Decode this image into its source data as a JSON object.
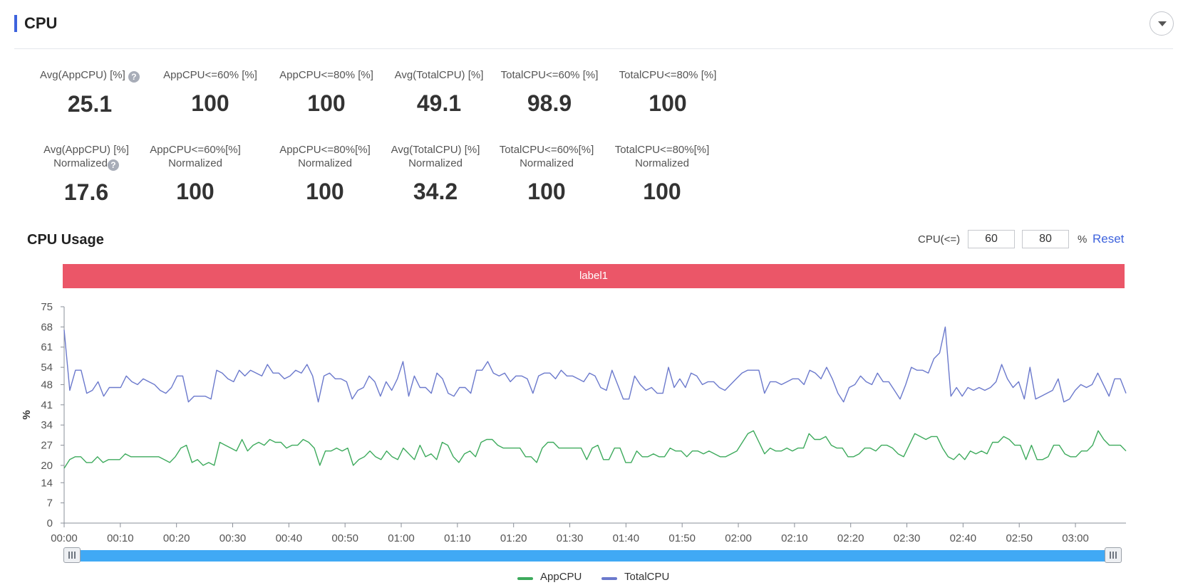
{
  "header": {
    "title": "CPU"
  },
  "metrics_row1": [
    {
      "label": "Avg(AppCPU) [%]",
      "value": "25.1",
      "help": true
    },
    {
      "label": "AppCPU<=60% [%]",
      "value": "100"
    },
    {
      "label": "AppCPU<=80% [%]",
      "value": "100"
    },
    {
      "label": "Avg(TotalCPU) [%]",
      "value": "49.1"
    },
    {
      "label": "TotalCPU<=60% [%]",
      "value": "98.9"
    },
    {
      "label": "TotalCPU<=80% [%]",
      "value": "100"
    }
  ],
  "metrics_row2": [
    {
      "label": "Avg(AppCPU) [%]",
      "sublabel": "Normalized",
      "value": "17.6",
      "help": true
    },
    {
      "label": "AppCPU<=60%[%]",
      "sublabel": "Normalized",
      "value": "100"
    },
    {
      "label": "AppCPU<=80%[%]",
      "sublabel": "Normalized",
      "value": "100"
    },
    {
      "label": "Avg(TotalCPU) [%]",
      "sublabel": "Normalized",
      "value": "34.2"
    },
    {
      "label": "TotalCPU<=60%[%]",
      "sublabel": "Normalized",
      "value": "100"
    },
    {
      "label": "TotalCPU<=80%[%]",
      "sublabel": "Normalized",
      "value": "100"
    }
  ],
  "usage": {
    "title": "CPU Usage",
    "threshold_label": "CPU(<=)",
    "threshold1": "60",
    "threshold2": "80",
    "unit": "%",
    "reset_label": "Reset",
    "band_label": "label1",
    "colors": {
      "band": "#eb5668",
      "app": "#3daa5c",
      "total": "#6b79cc",
      "slider": "#40a9f5"
    }
  },
  "chart_data": {
    "type": "line",
    "ylabel": "%",
    "ylim": [
      0,
      75
    ],
    "yticks": [
      "0",
      "7",
      "14",
      "20",
      "27",
      "34",
      "41",
      "48",
      "54",
      "61",
      "68",
      "75"
    ],
    "xticks": [
      "00:00",
      "00:10",
      "00:20",
      "00:30",
      "00:40",
      "00:50",
      "01:00",
      "01:10",
      "01:20",
      "01:30",
      "01:40",
      "01:50",
      "02:00",
      "02:10",
      "02:20",
      "02:30",
      "02:40",
      "02:50",
      "03:00"
    ],
    "x_start": "00:00",
    "x_end": "03:09",
    "series": [
      {
        "name": "AppCPU",
        "values": [
          19,
          22,
          23,
          23,
          21,
          21,
          23,
          21,
          22,
          22,
          22,
          24,
          23,
          23,
          23,
          23,
          23,
          23,
          22,
          21,
          23,
          26,
          27,
          21,
          22,
          20,
          21,
          20,
          28,
          27,
          26,
          25,
          29,
          25,
          27,
          28,
          27,
          29,
          28,
          28,
          26,
          27,
          27,
          29,
          28,
          26,
          20,
          25,
          25,
          26,
          25,
          26,
          20,
          22,
          23,
          25,
          23,
          22,
          25,
          23,
          22,
          26,
          24,
          22,
          27,
          23,
          24,
          22,
          28,
          27,
          23,
          21,
          24,
          25,
          23,
          28,
          29,
          29,
          27,
          26,
          26,
          26,
          26,
          23,
          23,
          21,
          26,
          28,
          28,
          26,
          26,
          26,
          26,
          26,
          22,
          26,
          27,
          22,
          22,
          26,
          26,
          21,
          21,
          25,
          23,
          23,
          24,
          23,
          23,
          26,
          25,
          25,
          23,
          25,
          25,
          24,
          25,
          24,
          23,
          23,
          24,
          25,
          28,
          31,
          32,
          28,
          24,
          26,
          25,
          25,
          26,
          25,
          26,
          26,
          31,
          29,
          29,
          30,
          27,
          26,
          26,
          23,
          23,
          24,
          26,
          26,
          25,
          27,
          27,
          26,
          24,
          23,
          27,
          31,
          30,
          29,
          30,
          30,
          26,
          23,
          22,
          24,
          22,
          25,
          24,
          25,
          24,
          28,
          28,
          30,
          29,
          27,
          27,
          22,
          27,
          22,
          22,
          23,
          27,
          27,
          24,
          23,
          23,
          25,
          25,
          27,
          32,
          29,
          27,
          27,
          27,
          25
        ]
      },
      {
        "name": "TotalCPU",
        "values": [
          67,
          46,
          53,
          53,
          45,
          46,
          49,
          44,
          47,
          47,
          47,
          51,
          49,
          48,
          50,
          49,
          48,
          46,
          45,
          47,
          51,
          51,
          42,
          44,
          44,
          44,
          43,
          53,
          52,
          50,
          49,
          53,
          51,
          53,
          52,
          51,
          55,
          52,
          52,
          50,
          51,
          53,
          52,
          55,
          51,
          42,
          51,
          52,
          50,
          50,
          49,
          43,
          46,
          47,
          51,
          49,
          44,
          49,
          46,
          50,
          56,
          44,
          51,
          47,
          47,
          45,
          52,
          50,
          45,
          44,
          47,
          47,
          45,
          53,
          53,
          56,
          52,
          51,
          52,
          49,
          51,
          51,
          50,
          45,
          51,
          52,
          52,
          50,
          53,
          51,
          51,
          50,
          49,
          52,
          51,
          47,
          46,
          53,
          48,
          43,
          43,
          51,
          48,
          46,
          47,
          45,
          45,
          54,
          47,
          50,
          47,
          52,
          51,
          48,
          49,
          49,
          47,
          46,
          48,
          50,
          52,
          53,
          53,
          53,
          45,
          49,
          49,
          48,
          49,
          50,
          50,
          48,
          53,
          52,
          50,
          54,
          50,
          45,
          42,
          47,
          48,
          51,
          49,
          48,
          52,
          49,
          49,
          46,
          43,
          48,
          54,
          53,
          53,
          52,
          57,
          59,
          68,
          44,
          47,
          44,
          47,
          46,
          47,
          46,
          47,
          49,
          55,
          50,
          47,
          49,
          43,
          54,
          43,
          44,
          45,
          46,
          50,
          42,
          43,
          46,
          48,
          47,
          48,
          52,
          48,
          44,
          50,
          50,
          45
        ]
      }
    ],
    "legend_position": "bottom-center",
    "grid": false
  }
}
